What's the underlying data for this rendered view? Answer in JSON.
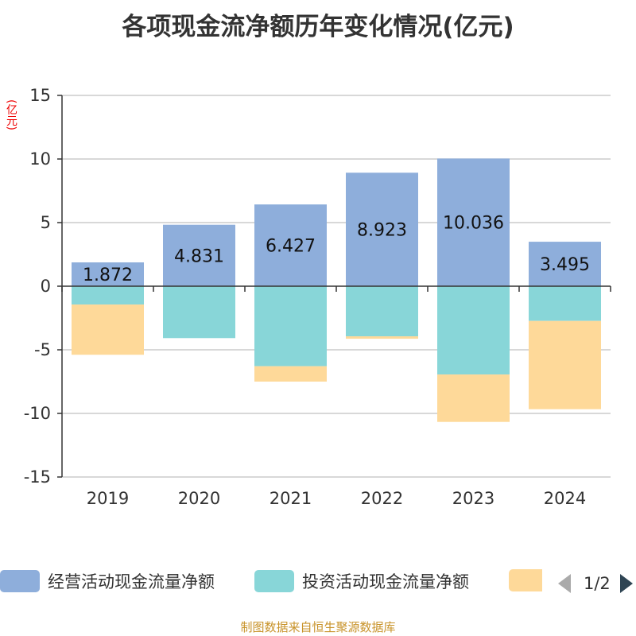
{
  "title": "各项现金流净额历年变化情况(亿元)",
  "unit": "(亿元)",
  "legend": {
    "page": "1/2"
  },
  "footer": "制图数据来自恒生聚源数据库",
  "colors": {
    "operating": "#8eaedb",
    "investing": "#88d6d8",
    "third": "#fed999"
  },
  "chart_data": {
    "type": "bar",
    "stacked": true,
    "categories": [
      "2019",
      "2020",
      "2021",
      "2022",
      "2023",
      "2024"
    ],
    "ylim": [
      -15,
      15
    ],
    "yticks": [
      15,
      10,
      5,
      0,
      -5,
      -10,
      -15
    ],
    "grid": true,
    "legend_position": "bottom",
    "series": [
      {
        "name": "经营活动现金流量净额",
        "values": [
          1.872,
          4.831,
          6.427,
          8.923,
          10.036,
          3.495
        ],
        "labels": [
          "1.872",
          "4.831",
          "6.427",
          "8.923",
          "10.036",
          "3.495"
        ]
      },
      {
        "name": "投资活动现金流量净额",
        "values": [
          -1.44,
          -4.08,
          -6.29,
          -3.94,
          -6.94,
          -2.73
        ]
      },
      {
        "values": [
          -3.95,
          0,
          -1.21,
          -0.19,
          -3.73,
          -6.94
        ]
      }
    ]
  }
}
